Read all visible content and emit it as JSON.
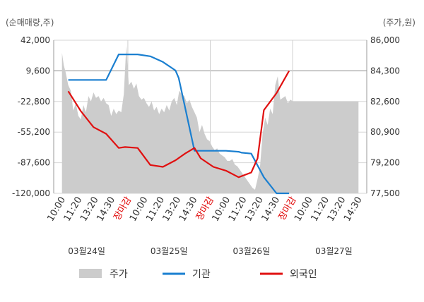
{
  "chart_data": {
    "type": "line",
    "left_axis": {
      "unit_label": "(순매매량,주)",
      "ticks": [
        "42,000",
        "9,600",
        "-22,800",
        "-55,200",
        "-87,600",
        "-120,000"
      ],
      "ylim": [
        -120000,
        42000
      ]
    },
    "right_axis": {
      "unit_label": "(주가,원)",
      "ticks": [
        "86,000",
        "84,300",
        "82,600",
        "80,900",
        "79,200",
        "77,500"
      ],
      "ylim": [
        77500,
        86000
      ]
    },
    "x_ticks": [
      "10:00",
      "11:20",
      "13:20",
      "14:30",
      "장마감",
      "10:00",
      "11:20",
      "13:20",
      "14:30",
      "장마감",
      "10:00",
      "11:20",
      "13:20",
      "14:30",
      "장마감",
      "10:00",
      "11:20",
      "13:20",
      "14:30"
    ],
    "closing_label": "장마감",
    "dates": [
      "03월24일",
      "03월25일",
      "03월26일",
      "03월27일"
    ],
    "legend": [
      "주가",
      "기관",
      "외국인"
    ],
    "colors": {
      "price": "#cccccc",
      "institution": "#1a7fd0",
      "foreign": "#e01010",
      "grid": "#bbbbbb",
      "close_label": "#e00000"
    },
    "series": [
      {
        "name": "주가",
        "axis": "right",
        "type": "area",
        "x": [
          0,
          0.3,
          0.6,
          1,
          1.4,
          1.8,
          2.2,
          2.6,
          3,
          3.4,
          3.8,
          4.2,
          4.6,
          5,
          5.4,
          5.8,
          6.2,
          6.6,
          7,
          7.4,
          7.8,
          8.2,
          8.6,
          9,
          9.4,
          9.8,
          10.2,
          10.6,
          11,
          11.4,
          11.8,
          12.2,
          12.6,
          13,
          13.4,
          13.8,
          14.2,
          14.6,
          15,
          15.4,
          15.8,
          16.2,
          16.6,
          17,
          17.4,
          17.8,
          18.2,
          18.6,
          19,
          19.4,
          19.8,
          20.2,
          20.6,
          21,
          21.4,
          21.8,
          22.2,
          22.6,
          23,
          23.4,
          23.8,
          24.2,
          24.6,
          25,
          25.4,
          25.8,
          26.2,
          26.6,
          27,
          27.4,
          27.8,
          28.2,
          28.6,
          29,
          29.4,
          29.8,
          30.2,
          30.6,
          31,
          31.4,
          31.8,
          32.2,
          32.6,
          33,
          33.4,
          33.8,
          34.2,
          34.6,
          35,
          35.4,
          35.8,
          36.2,
          36.6,
          37,
          37.4,
          37.8,
          38.2,
          38.6,
          39,
          39.4,
          39.8,
          40.2,
          40.6,
          41,
          41.4,
          41.8,
          42.2,
          42.6,
          43,
          43.4,
          43.8,
          44.2,
          44.6,
          45,
          45.4,
          45.8,
          46.2,
          46.6,
          47
        ],
        "values": [
          85300,
          84600,
          84200,
          83500,
          83200,
          82100,
          82500,
          81800,
          81600,
          82400,
          82000,
          82900,
          82600,
          83100,
          82800,
          82900,
          82600,
          82800,
          82500,
          82400,
          81800,
          82200,
          81900,
          82100,
          82000,
          83000,
          85700,
          83500,
          83700,
          83300,
          83600,
          82900,
          82700,
          82800,
          82500,
          82300,
          82600,
          82100,
          82300,
          81900,
          82200,
          82000,
          82400,
          82100,
          82600,
          82800,
          82400,
          83200,
          83000,
          82900,
          82500,
          82700,
          82300,
          82000,
          81700,
          80900,
          81300,
          80800,
          80500,
          80400,
          80100,
          79900,
          80000,
          79700,
          79600,
          79500,
          79300,
          79300,
          79400,
          79100,
          79000,
          78800,
          78600,
          78400,
          78200,
          78000,
          77800,
          77700,
          78300,
          79000,
          80800,
          81700,
          81300,
          82200,
          81900,
          83500,
          84000,
          82700,
          82800,
          82900,
          82500,
          82700,
          82600,
          82600,
          82600,
          82600,
          82600,
          82600,
          82600,
          82600,
          82600,
          82600,
          82600,
          82600,
          82600,
          82600,
          82600,
          82600,
          82600,
          82600,
          82600,
          82600,
          82600,
          82600,
          82600,
          82600,
          82600,
          82600,
          82600
        ]
      },
      {
        "name": "기관",
        "axis": "left",
        "type": "line",
        "x": [
          1,
          5.5,
          7,
          9,
          10,
          12,
          14,
          16,
          18,
          18.5,
          21,
          21.5,
          23,
          25,
          26,
          28,
          28.5,
          30,
          32,
          34,
          36
        ],
        "values": [
          0,
          0,
          0,
          27000,
          27000,
          27000,
          25000,
          19000,
          10000,
          2000,
          -75000,
          -75000,
          -75000,
          -75000,
          -75000,
          -76000,
          -77000,
          -78000,
          -103000,
          -120000,
          -120000
        ]
      },
      {
        "name": "외국인",
        "axis": "left",
        "type": "line",
        "x": [
          1,
          3,
          5,
          7,
          9,
          10,
          12,
          14,
          16,
          18,
          19.5,
          21,
          22,
          24,
          26,
          28,
          30,
          31,
          32,
          34,
          36
        ],
        "values": [
          -12000,
          -33000,
          -50000,
          -57000,
          -72000,
          -71000,
          -72000,
          -90000,
          -92000,
          -85000,
          -78000,
          -72000,
          -83000,
          -92000,
          -96000,
          -103000,
          -98000,
          -83000,
          -32000,
          -14000,
          9600
        ]
      }
    ],
    "grid": true,
    "legend_position": "bottom"
  }
}
